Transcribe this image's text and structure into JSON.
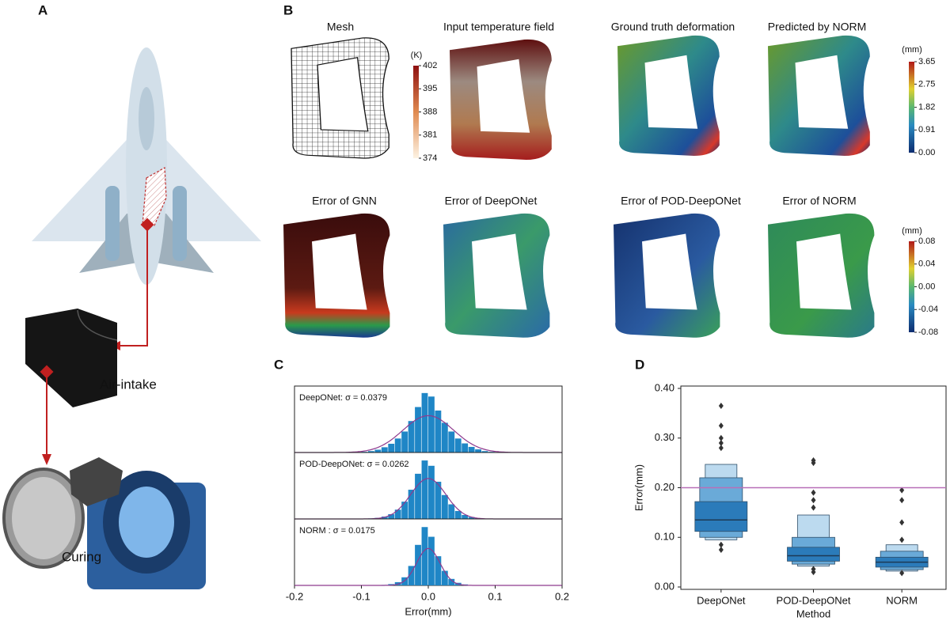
{
  "panel_labels": [
    "A",
    "B",
    "C",
    "D"
  ],
  "panel_a": {
    "labels": [
      "Air-intake",
      "Curing"
    ]
  },
  "panel_b": {
    "top_titles": [
      "Mesh",
      "Input temperature field",
      "Ground truth deformation",
      "Predicted by NORM"
    ],
    "bottom_titles": [
      "Error of GNN",
      "Error of DeepONet",
      "Error of POD-DeepONet",
      "Error of NORM"
    ],
    "colorbars": [
      {
        "unit": "(K)",
        "lim": [
          374,
          402
        ],
        "ticks": [
          402,
          395,
          388,
          381,
          374
        ]
      },
      {
        "unit": "(mm)",
        "lim": [
          0,
          3.65
        ],
        "ticks": [
          3.65,
          2.75,
          1.82,
          0.91,
          {
            "value": 0,
            "label": "0.00"
          }
        ]
      },
      {
        "unit": "(mm)",
        "lim": [
          -0.08,
          0.08
        ],
        "ticks": [
          0.08,
          0.04,
          {
            "value": 0,
            "label": "0.00"
          },
          -0.04,
          -0.08
        ]
      }
    ]
  },
  "chart_data": [
    {
      "type": "histogram",
      "xlabel": "Error(mm)",
      "xlim": [
        -0.2,
        0.2
      ],
      "xticks": [
        -0.2,
        -0.1,
        {
          "value": 0,
          "label": "0.0"
        },
        0.1,
        0.2
      ],
      "color": "#1f86c6",
      "fit_color": "#8e3a8e",
      "bins": [
        -0.1,
        -0.09,
        -0.08,
        -0.07,
        -0.06,
        -0.05,
        -0.04,
        -0.03,
        -0.02,
        -0.01,
        0,
        0.01,
        0.02,
        0.03,
        0.04,
        0.05,
        0.06,
        0.07,
        0.08,
        0.09,
        0.1
      ],
      "series": [
        {
          "annotation": "DeepONet: σ = 0.0379",
          "sigma": 0.0379,
          "ylim": [
            0,
            19
          ],
          "values": [
            0.2,
            0.4,
            0.8,
            1.5,
            2.5,
            4,
            6,
            9,
            13,
            17,
            16,
            12,
            8.5,
            6,
            4,
            2.6,
            1.6,
            0.9,
            0.4,
            0.2
          ]
        },
        {
          "annotation": "POD-DeepONet: σ = 0.0262",
          "sigma": 0.0262,
          "ylim": [
            0,
            25
          ],
          "values": [
            0.1,
            0.2,
            0.4,
            0.9,
            1.8,
            3.5,
            6.5,
            11,
            17,
            22,
            20,
            14,
            9,
            5.5,
            3,
            1.5,
            0.7,
            0.3,
            0.1,
            0.05
          ]
        },
        {
          "annotation": "NORM : σ = 0.0175",
          "sigma": 0.0175,
          "ylim": [
            0,
            41
          ],
          "values": [
            0,
            0.05,
            0.1,
            0.3,
            0.8,
            2,
            5,
            12,
            25,
            36,
            30,
            18,
            9,
            4,
            1.6,
            0.6,
            0.2,
            0.1,
            0,
            0
          ]
        }
      ]
    },
    {
      "type": "boxen",
      "xlabel": "Method",
      "ylabel": "Error(mm)",
      "categories": [
        "DeepONet",
        "POD-DeepONet",
        "NORM"
      ],
      "ylim": [
        0,
        0.4
      ],
      "yticks": [
        {
          "value": 0,
          "label": "0.00"
        },
        {
          "value": 0.1,
          "label": "0.10"
        },
        {
          "value": 0.2,
          "label": "0.20"
        },
        {
          "value": 0.3,
          "label": "0.30"
        },
        {
          "value": 0.4,
          "label": "0.40"
        }
      ],
      "ref_line": 0.2,
      "ref_color": "#b86fb8",
      "level_colors": [
        "#2b7bba",
        "#6aaad8",
        "#bcdaef"
      ],
      "boxes": [
        {
          "median": 0.135,
          "levels": [
            [
              0.112,
              0.172
            ],
            [
              0.1,
              0.22
            ],
            [
              0.095,
              0.247
            ]
          ],
          "outliers": [
            0.075,
            0.085,
            0.28,
            0.29,
            0.3,
            0.325,
            0.365
          ]
        },
        {
          "median": 0.063,
          "levels": [
            [
              0.052,
              0.08
            ],
            [
              0.046,
              0.1
            ],
            [
              0.042,
              0.145
            ]
          ],
          "outliers": [
            0.03,
            0.036,
            0.16,
            0.175,
            0.19,
            0.25,
            0.255
          ]
        },
        {
          "median": 0.05,
          "levels": [
            [
              0.04,
              0.06
            ],
            [
              0.035,
              0.072
            ],
            [
              0.032,
              0.085
            ]
          ],
          "outliers": [
            0.028,
            0.095,
            0.13,
            0.175,
            0.195
          ]
        }
      ]
    }
  ]
}
